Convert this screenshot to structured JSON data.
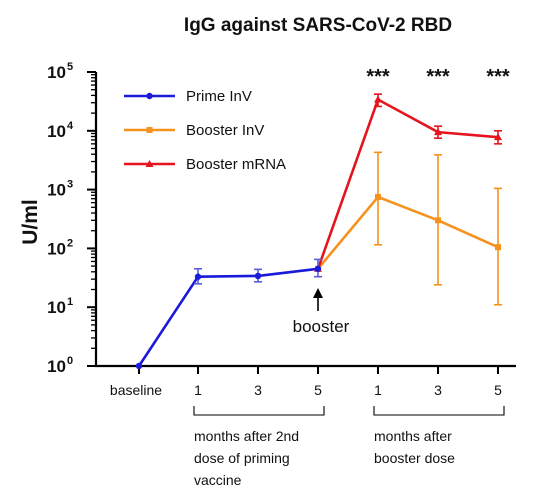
{
  "chart_data": {
    "type": "line",
    "title": "IgG against SARS-CoV-2 RBD",
    "ylabel": "U/ml",
    "xlabel": "",
    "yscale": "log",
    "ylim": [
      1,
      100000
    ],
    "yticks": [
      {
        "base": "10",
        "exp": "0",
        "value": 1
      },
      {
        "base": "10",
        "exp": "1",
        "value": 10
      },
      {
        "base": "10",
        "exp": "2",
        "value": 100
      },
      {
        "base": "10",
        "exp": "3",
        "value": 1000
      },
      {
        "base": "10",
        "exp": "4",
        "value": 10000
      },
      {
        "base": "10",
        "exp": "5",
        "value": 100000
      }
    ],
    "categories": [
      "baseline",
      "1",
      "3",
      "5",
      "1",
      "3",
      "5"
    ],
    "legend_position": "top-left",
    "series": [
      {
        "name": "Prime InV",
        "color": "#1a1adb",
        "marker": "circle",
        "values": [
          1,
          33,
          34,
          45,
          null,
          null,
          null
        ],
        "err_low": [
          null,
          25,
          27,
          33,
          null,
          null,
          null
        ],
        "err_high": [
          null,
          45,
          44,
          65,
          null,
          null,
          null
        ]
      },
      {
        "name": "Booster InV",
        "color": "#f5921e",
        "marker": "square",
        "values": [
          null,
          null,
          null,
          45,
          750,
          300,
          105
        ],
        "err_low": [
          null,
          null,
          null,
          null,
          115,
          24,
          11
        ],
        "err_high": [
          null,
          null,
          null,
          null,
          4300,
          3900,
          1050
        ]
      },
      {
        "name": "Booster mRNA",
        "color": "#e6141e",
        "marker": "triangle",
        "values": [
          null,
          null,
          null,
          45,
          34000,
          9500,
          7800
        ],
        "err_low": [
          null,
          null,
          null,
          null,
          26000,
          7500,
          6000
        ],
        "err_high": [
          null,
          null,
          null,
          null,
          42000,
          12000,
          10000
        ]
      }
    ],
    "significance": [
      {
        "category_index": 4,
        "label": "***"
      },
      {
        "category_index": 5,
        "label": "***"
      },
      {
        "category_index": 6,
        "label": "***"
      }
    ],
    "annotation": {
      "label": "booster",
      "category_index": 3
    },
    "groups": [
      {
        "label_lines": [
          "months after 2nd",
          "dose of priming",
          "vaccine"
        ],
        "from_index": 1,
        "to_index": 3
      },
      {
        "label_lines": [
          "months after",
          "booster dose"
        ],
        "from_index": 4,
        "to_index": 6
      }
    ]
  }
}
